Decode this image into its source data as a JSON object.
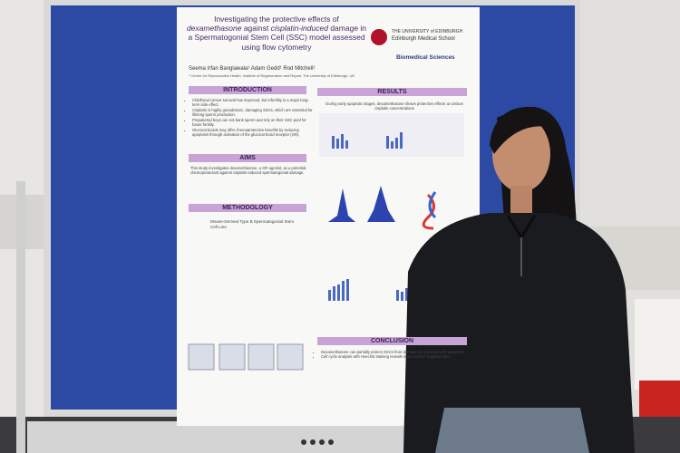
{
  "poster": {
    "title_parts": [
      "Investigating the protective effects of",
      "dexamethasone",
      "against",
      "cisplatin-induced",
      "damage in a Spermatogonial Stem Cell (SSC) model assessed using flow cytometry"
    ],
    "institution": "THE UNIVERSITY of EDINBURGH",
    "school": "Edinburgh Medical School",
    "department": "Biomedical Sciences",
    "authors": "Seema Irfan Banglawala¹ Adam Gedd¹ Rod Mitchell¹",
    "affiliation": "¹ Centre for Reproductive Health, Institute of Regeneration and Repair, The University of Edinburgh, UK",
    "introduction": {
      "heading": "INTRODUCTION",
      "bullets": [
        "Childhood cancer survival has improved, but infertility is a major long-term side effect.",
        "Cisplatin is highly gonadotoxic, damaging SSCs, which are essential for lifelong sperm production.",
        "Prepubertal boys can not bank sperm and rely on their SSC pool for future fertility.",
        "Glucocorticoids may offer chemoprotective benefits by reducing apoptosis through activation of the glucocorticoid receptor (GR)."
      ]
    },
    "aims": {
      "heading": "AIMS",
      "text": "This study investigates dexamethasone, a GR agonist, as a potential chemoprotectant against cisplatin-induced spermatogonial damage."
    },
    "methodology": {
      "heading": "METHODOLOGY",
      "text": "Mouse-Derived Type B Spermatogonial Stem Cell Line"
    },
    "results": {
      "heading": "RESULTS",
      "text": "During early apoptotic stages, dexamethasone shows protective effects at various cisplatin concentrations"
    },
    "conclusion": {
      "heading": "CONCLUSION",
      "bullets": [
        "Dexamethasone can partially protect SSCs from damage by reducing early apoptosis.",
        "Cell cycle analysis with Hoechst staining reveals reduced DNA fragmentation."
      ]
    }
  }
}
